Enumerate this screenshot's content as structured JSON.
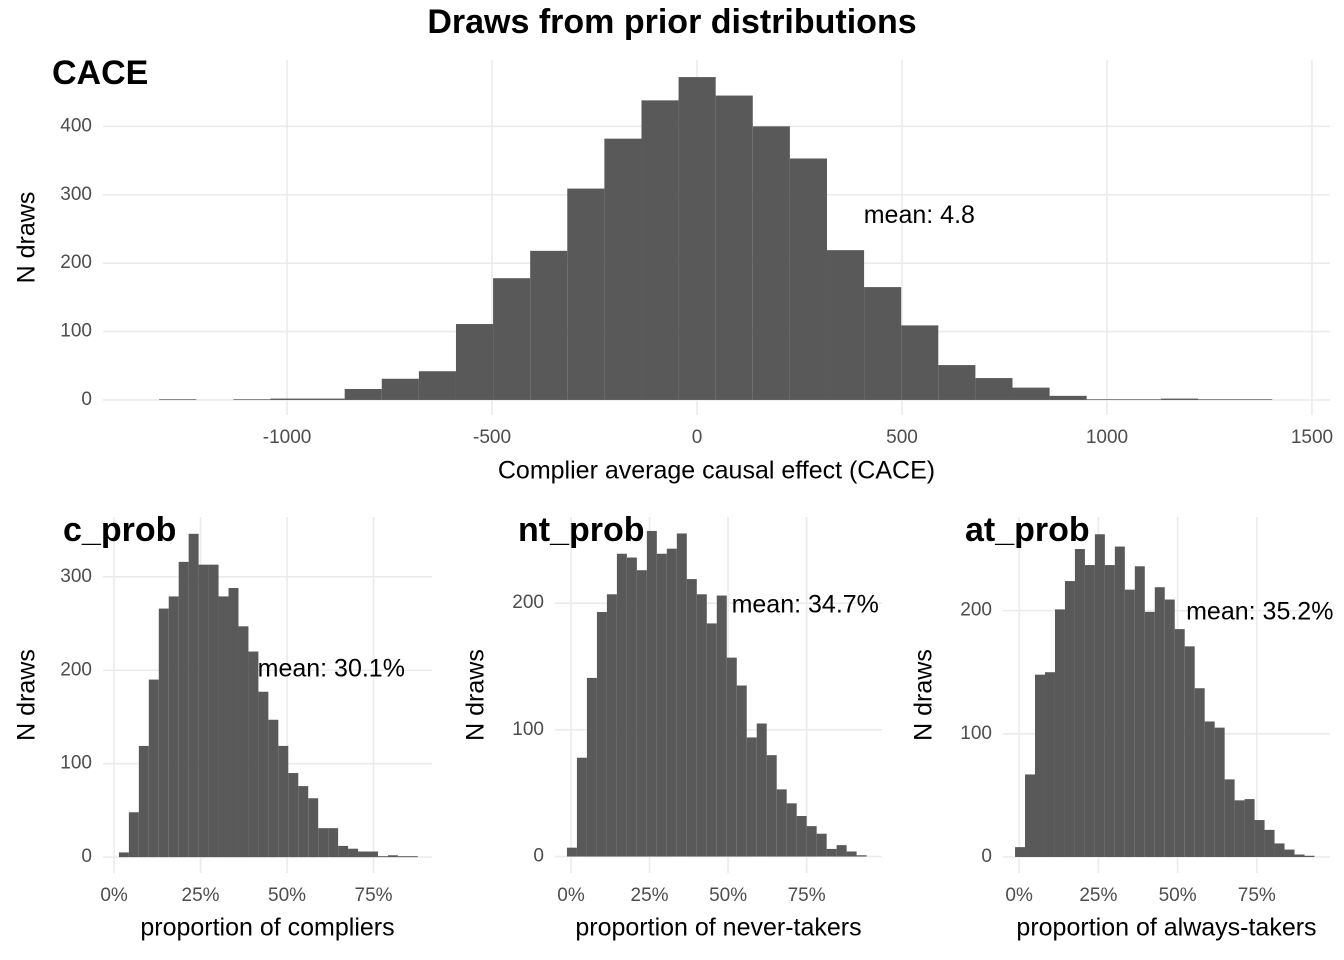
{
  "title": "Draws from prior distributions",
  "chart_data": [
    {
      "type": "histogram",
      "title": "CACE",
      "xlabel": "Complier average causal effect (CACE)",
      "ylabel": "N draws",
      "annotation": "mean: 4.8",
      "color": "#595959",
      "grid": true,
      "bins": [
        -1312,
        -1221.5,
        -1131,
        -1040.5,
        -950,
        -859.5,
        -769,
        -678.5,
        -588,
        -497.5,
        -407,
        -316.5,
        -226,
        -135.5,
        -45,
        45.5,
        136,
        226.5,
        317,
        407.5,
        498,
        588.5,
        679,
        769.5,
        860,
        950.5,
        1041,
        1131.5,
        1222,
        1312.5,
        1403
      ],
      "values": [
        1,
        0,
        1,
        2,
        2,
        16,
        31,
        42,
        111,
        178,
        218,
        309,
        382,
        438,
        472,
        445,
        400,
        353,
        219,
        165,
        109,
        51,
        32,
        18,
        6,
        1,
        1,
        2,
        1,
        1
      ],
      "xlim": [
        -1449,
        1544
      ],
      "ylim": [
        -22,
        497
      ],
      "xticks": [
        -1000,
        -500,
        0,
        500,
        1000,
        1500
      ],
      "yticks": [
        0,
        100,
        200,
        300,
        400
      ]
    },
    {
      "type": "histogram",
      "title": "c_prob",
      "xlabel": "proportion of compliers",
      "ylabel": "N draws",
      "annotation": "mean: 30.1%",
      "color": "#595959",
      "grid": true,
      "bins": [
        1.4,
        4.28,
        7.16,
        10.04,
        12.92,
        15.8,
        18.68,
        21.56,
        24.44,
        27.32,
        30.2,
        33.08,
        35.96,
        38.84,
        41.72,
        44.6,
        47.48,
        50.36,
        53.24,
        56.12,
        59,
        61.88,
        64.76,
        67.64,
        70.52,
        73.4,
        76.28,
        79.16,
        82.04,
        84.92,
        87.8
      ],
      "values": [
        5,
        48,
        119,
        190,
        266,
        279,
        316,
        346,
        313,
        313,
        279,
        288,
        247,
        220,
        177,
        147,
        119,
        90,
        76,
        63,
        31,
        31,
        12,
        9,
        6,
        6,
        1,
        2,
        1,
        1
      ],
      "xlim": [
        -3.2,
        91.9
      ],
      "ylim": [
        -17,
        364
      ],
      "xticks": [
        {
          "value": 0,
          "label": "0%"
        },
        {
          "value": 25,
          "label": "25%"
        },
        {
          "value": 50,
          "label": "50%"
        },
        {
          "value": 75,
          "label": "75%"
        }
      ],
      "yticks": [
        0,
        100,
        200,
        300
      ]
    },
    {
      "type": "histogram",
      "title": "nt_prob",
      "xlabel": "proportion of never-takers",
      "ylabel": "N draws",
      "annotation": "mean: 34.7%",
      "color": "#595959",
      "grid": true,
      "bins": [
        -1.3,
        1.88,
        5.06,
        8.24,
        11.42,
        14.6,
        17.78,
        20.96,
        24.14,
        27.32,
        30.5,
        33.68,
        36.86,
        40.04,
        43.22,
        46.4,
        49.58,
        52.76,
        55.94,
        59.12,
        62.3,
        65.48,
        68.66,
        71.84,
        75.02,
        78.2,
        81.38,
        84.56,
        87.74,
        90.92,
        94.1
      ],
      "values": [
        7,
        78,
        141,
        193,
        207,
        239,
        236,
        226,
        257,
        239,
        243,
        255,
        219,
        207,
        184,
        206,
        157,
        135,
        94,
        105,
        80,
        53,
        42,
        32,
        24,
        18,
        6,
        9,
        4,
        1
      ],
      "xlim": [
        -5.1,
        99
      ],
      "ylim": [
        -13,
        268
      ],
      "xticks": [
        {
          "value": 0,
          "label": "0%"
        },
        {
          "value": 25,
          "label": "25%"
        },
        {
          "value": 50,
          "label": "50%"
        },
        {
          "value": 75,
          "label": "75%"
        }
      ],
      "yticks": [
        0,
        100,
        200
      ]
    },
    {
      "type": "histogram",
      "title": "at_prob",
      "xlabel": "proportion of always-takers",
      "ylabel": "N draws",
      "annotation": "mean: 35.2%",
      "color": "#595959",
      "grid": true,
      "bins": [
        -1.3,
        1.85,
        5,
        8.15,
        11.3,
        14.45,
        17.6,
        20.75,
        23.9,
        27.05,
        30.2,
        33.35,
        36.5,
        39.65,
        42.8,
        45.95,
        49.1,
        52.25,
        55.4,
        58.55,
        61.7,
        64.85,
        68,
        71.15,
        74.3,
        77.45,
        80.6,
        83.75,
        86.9,
        90.05,
        93.2
      ],
      "values": [
        8,
        67,
        148,
        150,
        201,
        224,
        250,
        237,
        262,
        237,
        252,
        217,
        236,
        199,
        219,
        209,
        185,
        171,
        137,
        110,
        105,
        63,
        46,
        47,
        30,
        22,
        11,
        6,
        2,
        1
      ],
      "xlim": [
        -5.1,
        98.1
      ],
      "ylim": [
        -13,
        276
      ],
      "xticks": [
        {
          "value": 0,
          "label": "0%"
        },
        {
          "value": 25,
          "label": "25%"
        },
        {
          "value": 50,
          "label": "50%"
        },
        {
          "value": 75,
          "label": "75%"
        }
      ],
      "yticks": [
        0,
        100,
        200
      ]
    }
  ]
}
